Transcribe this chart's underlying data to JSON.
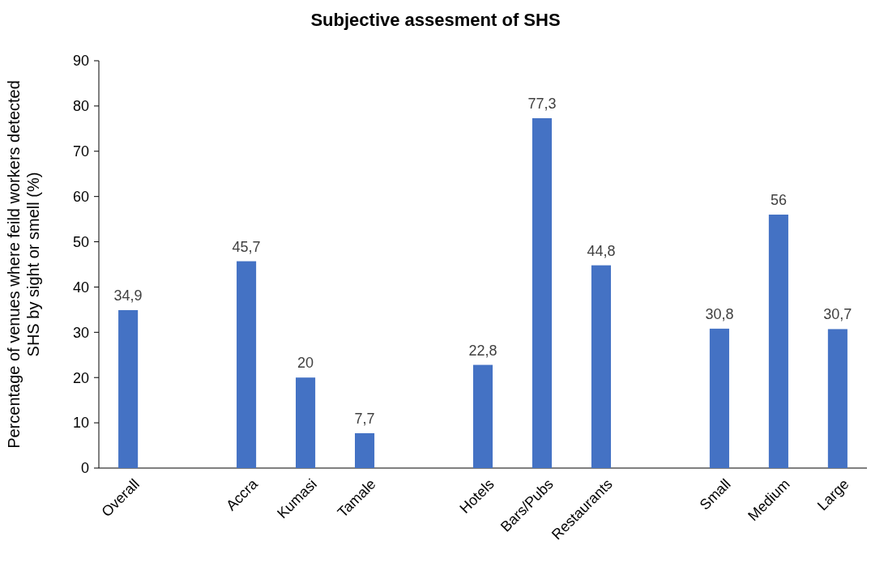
{
  "chart_data": {
    "type": "bar",
    "title": "Subjective assesment of SHS",
    "ylabel": "Percentage of venues where feild workers detected\nSHS by sight or smell (%)",
    "categories": [
      "Overall",
      null,
      "Accra",
      "Kumasi",
      "Tamale",
      null,
      "Hotels",
      "Bars/Pubs",
      "Restaurants",
      null,
      "Small",
      "Medium",
      "Large"
    ],
    "values": [
      34.9,
      null,
      45.7,
      20,
      7.7,
      null,
      22.8,
      77.3,
      44.8,
      null,
      30.8,
      56,
      30.7
    ],
    "value_labels": [
      "34,9",
      null,
      "45,7",
      "20",
      "7,7",
      null,
      "22,8",
      "77,3",
      "44,8",
      null,
      "30,8",
      "56",
      "30,7"
    ],
    "color": "#4472c4",
    "ylim": [
      0,
      90
    ],
    "yticks": [
      0,
      10,
      20,
      30,
      40,
      50,
      60,
      70,
      80,
      90
    ],
    "grid": false
  }
}
